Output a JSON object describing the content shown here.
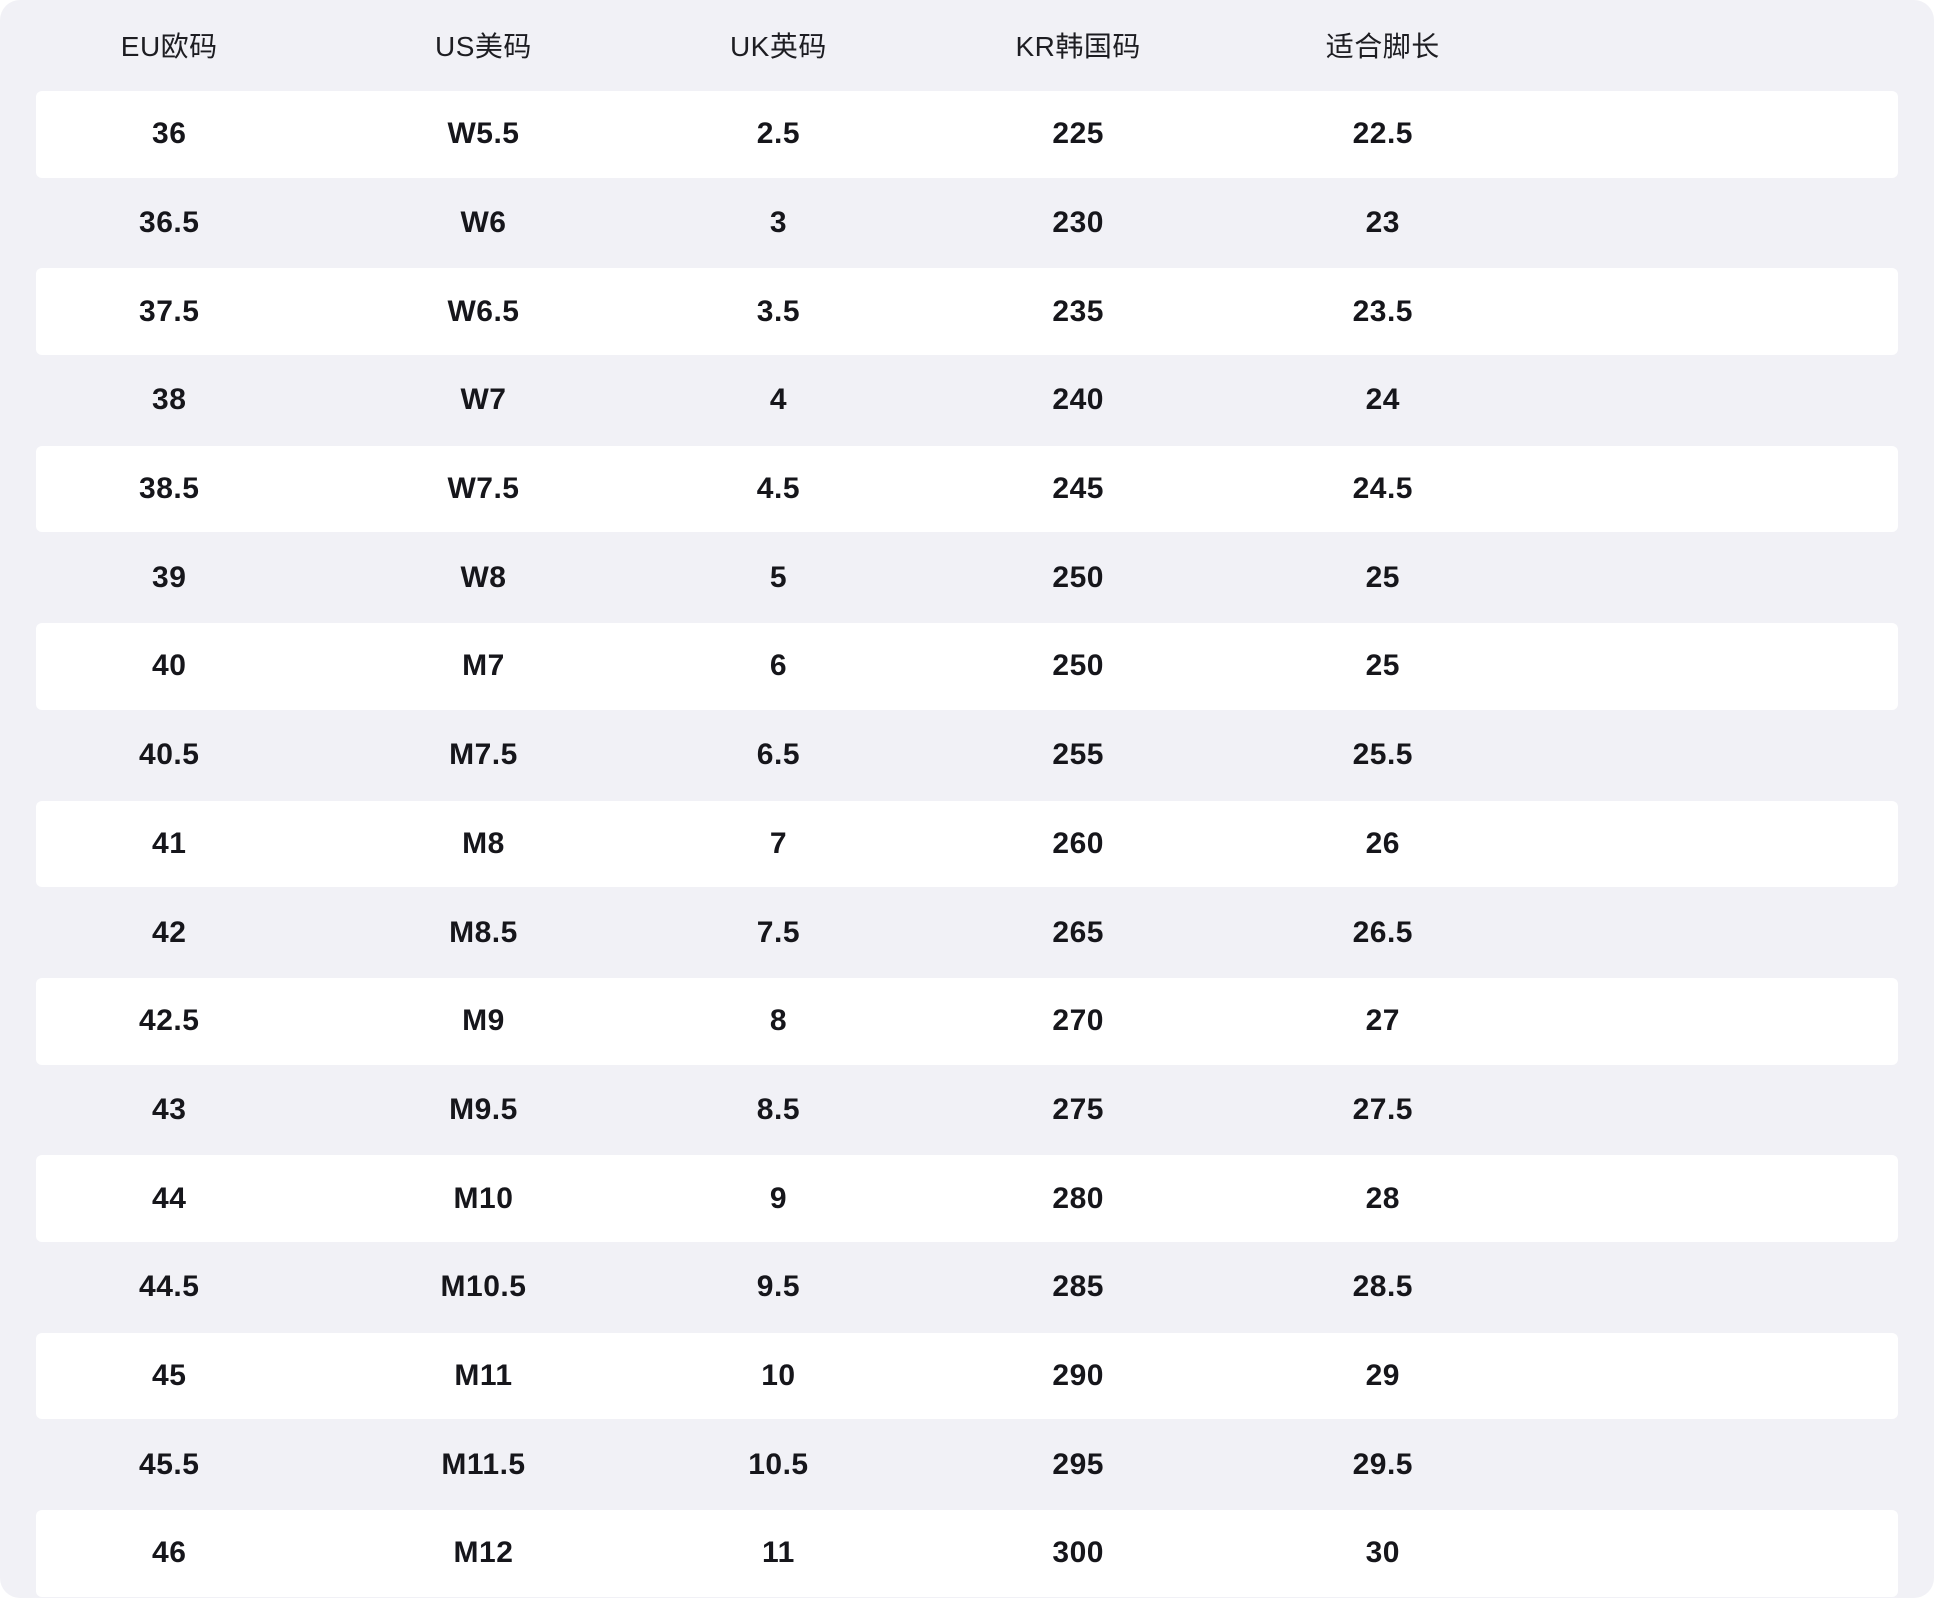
{
  "colors": {
    "background": "#f1f1f6",
    "row_white": "#ffffff",
    "text": "#16161b"
  },
  "chart_data": {
    "type": "table",
    "title": "",
    "headers": [
      "EU欧码",
      "US美码",
      "UK英码",
      "KR韩国码",
      "适合脚长"
    ],
    "rows": [
      [
        "36",
        "W5.5",
        "2.5",
        "225",
        "22.5"
      ],
      [
        "36.5",
        "W6",
        "3",
        "230",
        "23"
      ],
      [
        "37.5",
        "W6.5",
        "3.5",
        "235",
        "23.5"
      ],
      [
        "38",
        "W7",
        "4",
        "240",
        "24"
      ],
      [
        "38.5",
        "W7.5",
        "4.5",
        "245",
        "24.5"
      ],
      [
        "39",
        "W8",
        "5",
        "250",
        "25"
      ],
      [
        "40",
        "M7",
        "6",
        "250",
        "25"
      ],
      [
        "40.5",
        "M7.5",
        "6.5",
        "255",
        "25.5"
      ],
      [
        "41",
        "M8",
        "7",
        "260",
        "26"
      ],
      [
        "42",
        "M8.5",
        "7.5",
        "265",
        "26.5"
      ],
      [
        "42.5",
        "M9",
        "8",
        "270",
        "27"
      ],
      [
        "43",
        "M9.5",
        "8.5",
        "275",
        "27.5"
      ],
      [
        "44",
        "M10",
        "9",
        "280",
        "28"
      ],
      [
        "44.5",
        "M10.5",
        "9.5",
        "285",
        "28.5"
      ],
      [
        "45",
        "M11",
        "10",
        "290",
        "29"
      ],
      [
        "45.5",
        "M11.5",
        "10.5",
        "295",
        "29.5"
      ],
      [
        "46",
        "M12",
        "11",
        "300",
        "30"
      ]
    ]
  }
}
